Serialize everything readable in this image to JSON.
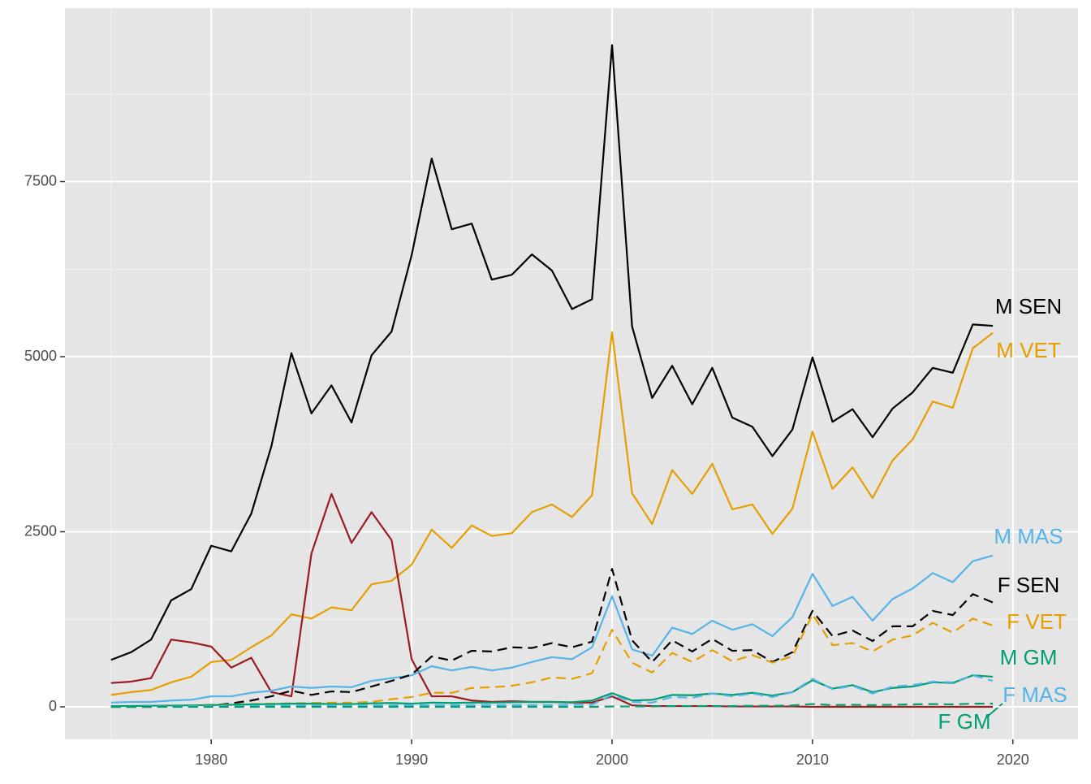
{
  "chart_data": {
    "type": "line",
    "x": [
      1975,
      1976,
      1977,
      1978,
      1979,
      1980,
      1981,
      1982,
      1983,
      1984,
      1985,
      1986,
      1987,
      1988,
      1989,
      1990,
      1991,
      1992,
      1993,
      1994,
      1995,
      1996,
      1997,
      1998,
      1999,
      2000,
      2001,
      2002,
      2003,
      2004,
      2005,
      2006,
      2007,
      2008,
      2009,
      2010,
      2011,
      2012,
      2013,
      2014,
      2015,
      2016,
      2017,
      2018,
      2019
    ],
    "xlim": [
      1972.7,
      2023.25
    ],
    "xticks": [
      1980,
      1990,
      2000,
      2010,
      2020
    ],
    "ylim": [
      -464,
      9977
    ],
    "yticks": [
      0,
      2500,
      5000,
      7500
    ],
    "grid": true,
    "series": [
      {
        "name": "M SEN",
        "color": "#000000",
        "linetype": "solid",
        "values": [
          670,
          780,
          960,
          1520,
          1680,
          2300,
          2220,
          2760,
          3720,
          5050,
          4190,
          4590,
          4060,
          5020,
          5360,
          6450,
          7830,
          6820,
          6900,
          6100,
          6170,
          6460,
          6230,
          5680,
          5820,
          9450,
          5430,
          4410,
          4870,
          4320,
          4840,
          4130,
          4000,
          3580,
          3960,
          4990,
          4070,
          4250,
          3850,
          4260,
          4490,
          4840,
          4770,
          5460,
          5440
        ]
      },
      {
        "name": "M VET",
        "color": "#E69F00",
        "linetype": "solid",
        "values": [
          170,
          210,
          240,
          350,
          430,
          640,
          670,
          850,
          1020,
          1320,
          1260,
          1420,
          1380,
          1750,
          1800,
          2030,
          2530,
          2270,
          2590,
          2440,
          2480,
          2780,
          2890,
          2710,
          3020,
          5350,
          3050,
          2610,
          3380,
          3040,
          3470,
          2820,
          2890,
          2470,
          2830,
          3930,
          3110,
          3420,
          2980,
          3520,
          3820,
          4360,
          4270,
          5120,
          5340
        ]
      },
      {
        "color": "#9B1C20",
        "linetype": "solid",
        "values": [
          340,
          360,
          410,
          960,
          920,
          860,
          560,
          700,
          210,
          150,
          2190,
          3040,
          2340,
          2780,
          2380,
          680,
          150,
          150,
          90,
          70,
          80,
          70,
          70,
          60,
          60,
          150,
          20,
          10,
          10,
          10,
          10,
          5,
          5,
          5,
          5,
          0,
          0,
          0,
          0,
          0,
          0,
          0,
          0,
          0,
          0
        ]
      },
      {
        "name": "M MAS",
        "color": "#56B4E9",
        "linetype": "solid",
        "values": [
          60,
          70,
          70,
          90,
          100,
          150,
          150,
          200,
          230,
          290,
          270,
          290,
          280,
          370,
          410,
          450,
          580,
          520,
          570,
          520,
          560,
          640,
          710,
          680,
          850,
          1580,
          820,
          730,
          1130,
          1040,
          1230,
          1100,
          1180,
          1010,
          1280,
          1900,
          1440,
          1570,
          1230,
          1540,
          1690,
          1910,
          1780,
          2080,
          2160
        ]
      },
      {
        "name": "F SEN",
        "color": "#000000",
        "linetype": "dashed",
        "values": [
          0,
          0,
          0,
          5,
          10,
          20,
          50,
          90,
          150,
          230,
          170,
          220,
          210,
          290,
          370,
          460,
          720,
          660,
          800,
          790,
          850,
          840,
          910,
          850,
          930,
          1970,
          950,
          640,
          950,
          790,
          970,
          800,
          810,
          640,
          780,
          1370,
          1010,
          1090,
          940,
          1150,
          1150,
          1370,
          1310,
          1610,
          1490
        ]
      },
      {
        "name": "F VET",
        "color": "#E69F00",
        "linetype": "dashed",
        "values": [
          0,
          5,
          10,
          15,
          20,
          30,
          35,
          40,
          45,
          50,
          55,
          60,
          60,
          70,
          110,
          140,
          200,
          200,
          270,
          280,
          300,
          350,
          420,
          400,
          480,
          1100,
          630,
          490,
          770,
          640,
          810,
          650,
          740,
          630,
          720,
          1320,
          880,
          910,
          790,
          960,
          1020,
          1200,
          1060,
          1260,
          1160
        ]
      },
      {
        "name": "M GM",
        "color": "#009E73",
        "linetype": "solid",
        "values": [
          10,
          12,
          15,
          18,
          20,
          25,
          30,
          35,
          40,
          45,
          45,
          40,
          40,
          50,
          55,
          45,
          60,
          55,
          60,
          60,
          65,
          70,
          70,
          65,
          90,
          195,
          90,
          100,
          170,
          165,
          190,
          170,
          200,
          160,
          210,
          380,
          260,
          310,
          210,
          270,
          290,
          350,
          340,
          450,
          430
        ]
      },
      {
        "name": "F MAS",
        "color": "#56B4E9",
        "linetype": "dashed",
        "values": [
          0,
          0,
          5,
          5,
          10,
          10,
          10,
          15,
          15,
          20,
          20,
          20,
          20,
          20,
          20,
          25,
          25,
          25,
          25,
          25,
          25,
          25,
          25,
          30,
          30,
          170,
          70,
          60,
          140,
          130,
          190,
          150,
          190,
          140,
          210,
          400,
          250,
          300,
          190,
          290,
          310,
          360,
          350,
          450,
          370
        ]
      },
      {
        "name": "F GM",
        "color": "#009E73",
        "linetype": "dashed",
        "values": [
          0,
          0,
          0,
          0,
          0,
          0,
          0,
          0,
          0,
          0,
          0,
          0,
          0,
          0,
          0,
          0,
          0,
          0,
          0,
          0,
          0,
          0,
          0,
          0,
          0,
          5,
          5,
          5,
          10,
          10,
          10,
          10,
          15,
          15,
          20,
          40,
          25,
          30,
          25,
          30,
          35,
          40,
          35,
          45,
          45
        ]
      }
    ]
  }
}
